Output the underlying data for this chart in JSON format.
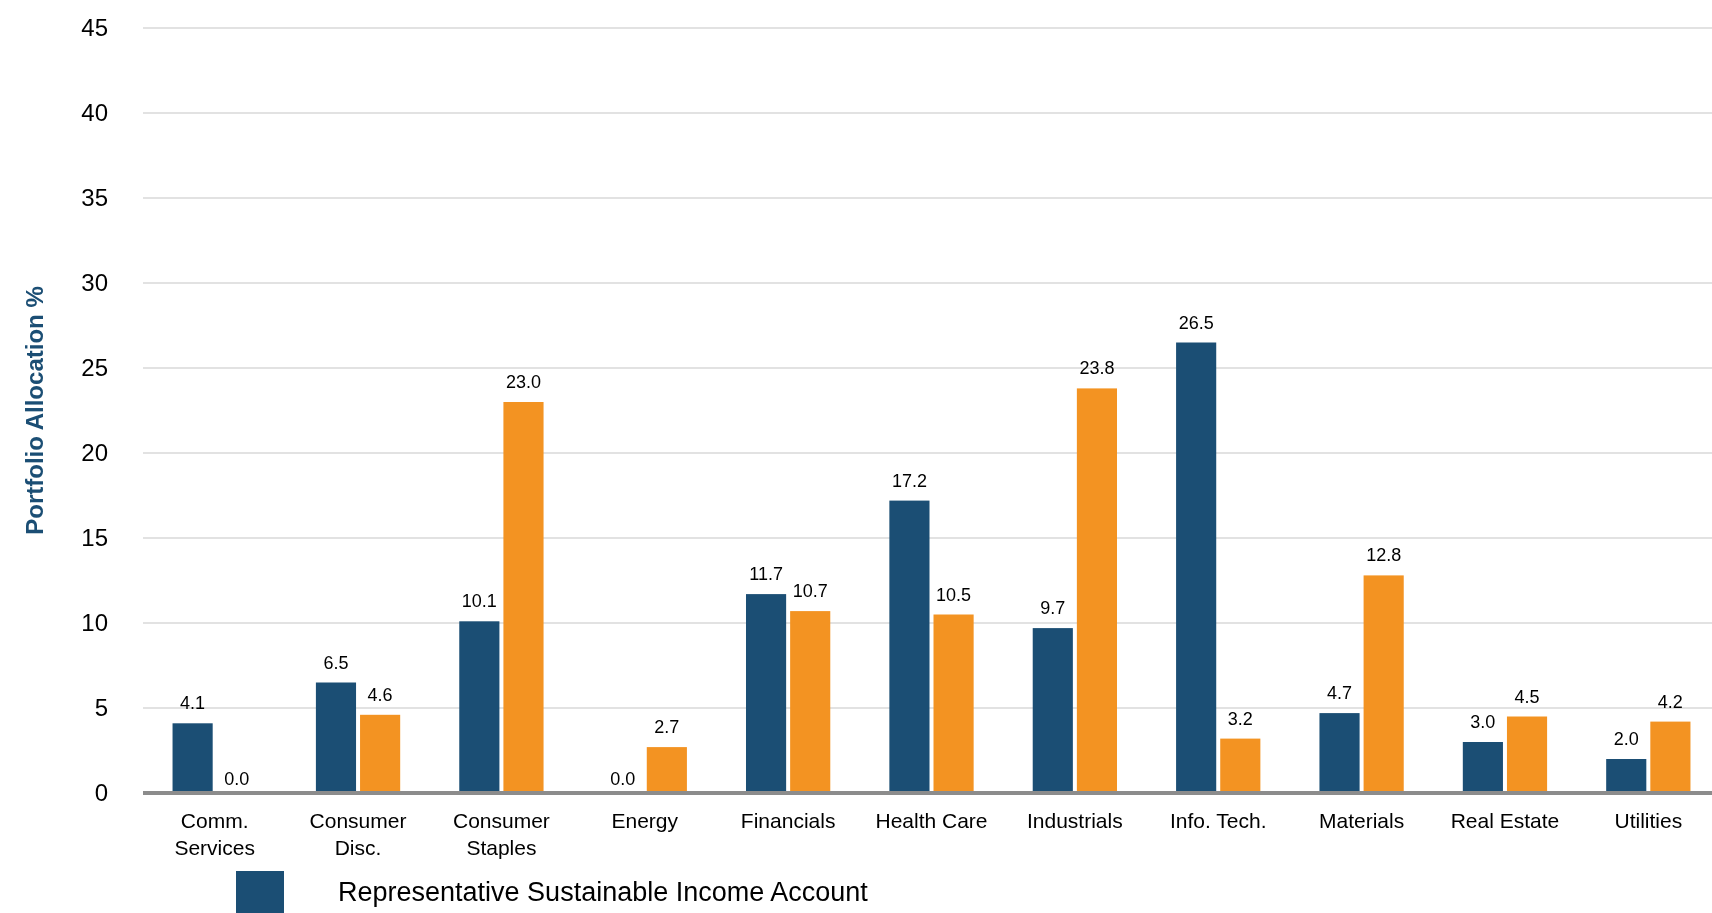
{
  "chart_data": {
    "type": "bar",
    "ylabel": "Portfolio Allocation %",
    "categories": [
      "Comm.\nServices",
      "Consumer\nDisc.",
      "Consumer\nStaples",
      "Energy",
      "Financials",
      "Health Care",
      "Industrials",
      "Info. Tech.",
      "Materials",
      "Real Estate",
      "Utilities"
    ],
    "series": [
      {
        "name": "Representative Sustainable Income Account",
        "color": "#1b4e74",
        "values": [
          4.1,
          6.5,
          10.1,
          0.0,
          11.7,
          17.2,
          9.7,
          26.5,
          4.7,
          3.0,
          2.0
        ],
        "value_labels": [
          "4.1",
          "6.5",
          "10.1",
          "0.0",
          "11.7",
          "17.2",
          "9.7",
          "26.5",
          "4.7",
          "3.0",
          "2.0"
        ]
      },
      {
        "color": "#f39322",
        "values": [
          0.0,
          4.6,
          23.0,
          2.7,
          10.7,
          10.5,
          23.8,
          3.2,
          12.8,
          4.5,
          4.2
        ],
        "value_labels": [
          "0.0",
          "4.6",
          "23.0",
          "2.7",
          "10.7",
          "10.5",
          "23.8",
          "3.2",
          "12.8",
          "4.5",
          "4.2"
        ]
      }
    ],
    "ylim": [
      0,
      45
    ],
    "yticks": [
      0,
      5,
      10,
      15,
      20,
      25,
      30,
      35,
      40,
      45
    ],
    "grid": "y",
    "legend": "bottom"
  }
}
